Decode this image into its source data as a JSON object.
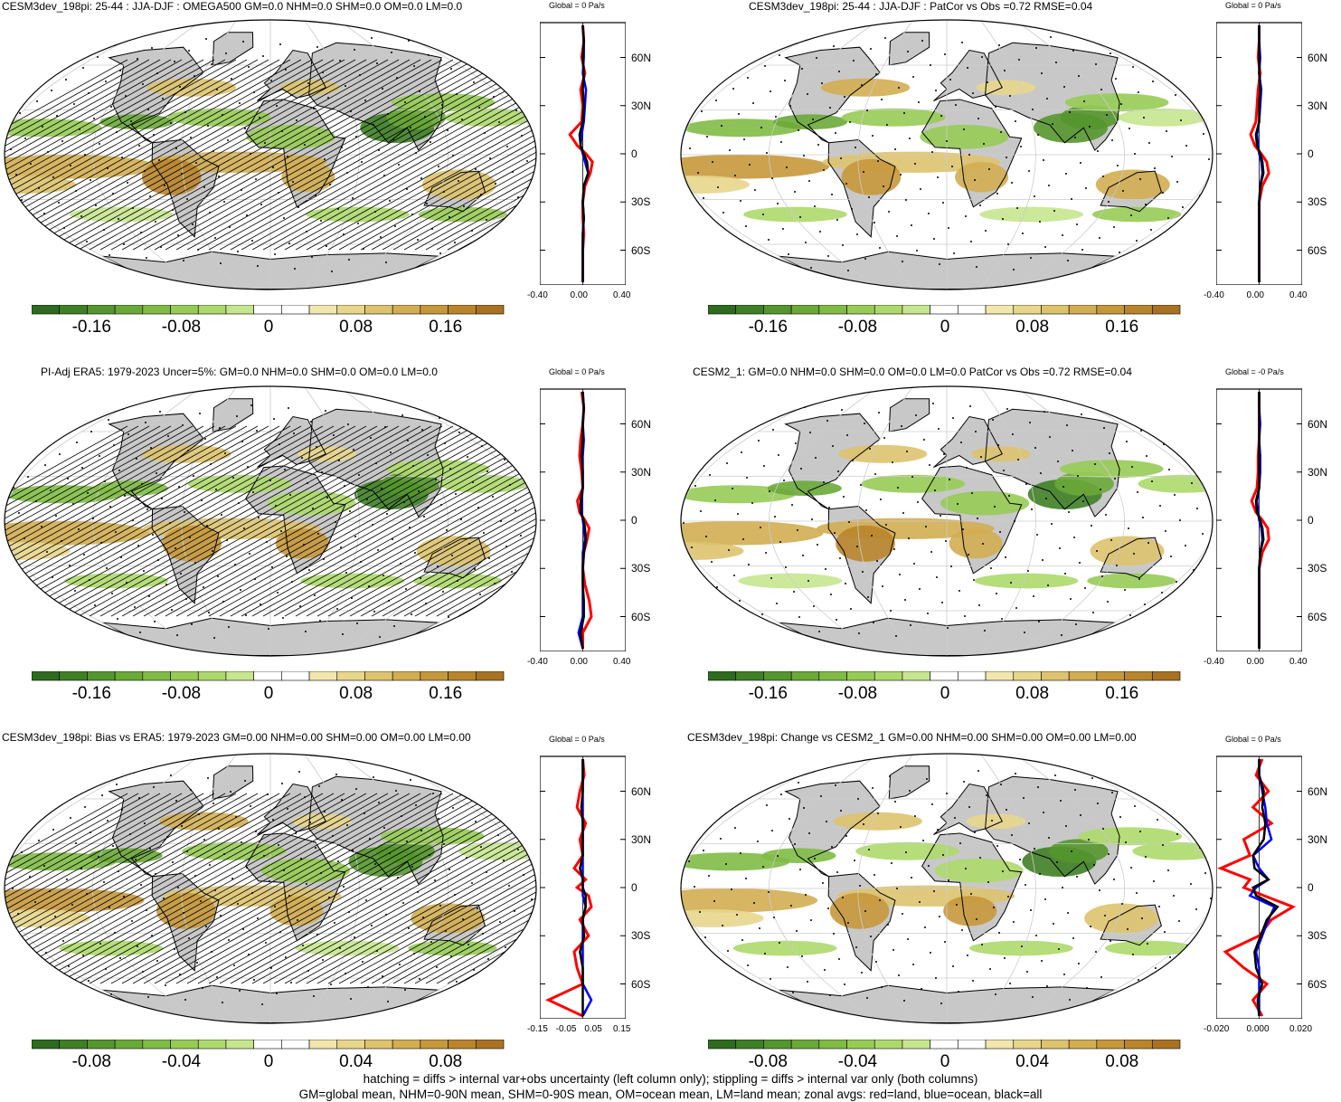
{
  "figure": {
    "footer": [
      "hatching = diffs > internal var+obs uncertainty (left column only); stippling = diffs > internal var only (both columns)",
      "GM=global mean, NHM=0-90N mean, SHM=0-90S mean, OM=ocean mean, LM=land mean; zonal avgs: red=land, blue=ocean, black=all"
    ]
  },
  "panels": [
    {
      "title": "CESM3dev_198pi: 25-44 : JJA-DJF : OMEGA500 GM=0.0 NHM=0.0 SHM=0.0 OM=0.0 LM=0.0",
      "zonal_title": "Global = 0 Pa/s"
    },
    {
      "title": "CESM3dev_198pi: 25-44 : JJA-DJF : PatCor vs Obs =0.72 RMSE=0.04",
      "zonal_title": "Global = 0 Pa/s"
    },
    {
      "title": "PI-Adj ERA5: 1979-2023 Uncer=5%: GM=0.0 NHM=0.0 SHM=0.0 OM=0.0 LM=0.0",
      "zonal_title": "Global = 0 Pa/s"
    },
    {
      "title": "CESM2_1: GM=0.0 NHM=0.0 SHM=0.0 OM=0.0 LM=0.0 PatCor vs Obs =0.72 RMSE=0.04",
      "zonal_title": "Global = -0 Pa/s"
    },
    {
      "title": "CESM3dev_198pi: Bias vs ERA5: 1979-2023 GM=0.00 NHM=0.00 SHM=0.00 OM=0.00 LM=0.00",
      "zonal_title": "Global = 0 Pa/s"
    },
    {
      "title": "CESM3dev_198pi: Change vs CESM2_1 GM=0.00 NHM=0.00 SHM=0.00 OM=0.00 LM=0.00",
      "zonal_title": "Global = 0 Pa/s"
    }
  ],
  "colors": {
    "scale": [
      "#2e6b1e",
      "#3f7f26",
      "#55962e",
      "#6aa938",
      "#80bb45",
      "#97cb55",
      "#add96c",
      "#c6e58f",
      "#ffffff",
      "#ffffff",
      "#f1e7ae",
      "#e8d68c",
      "#ddc36e",
      "#d2ad52",
      "#c6983c",
      "#b9852c",
      "#a97222"
    ],
    "land": "#c8c8c8",
    "land_line": "#e9e9e9",
    "zonal_land": "#ff0000",
    "zonal_ocean": "#0000ff",
    "zonal_all": "#000000"
  },
  "chart_data": [
    {
      "type": "heatmap",
      "colorbar_labels": [
        "-0.16",
        "-0.08",
        "0",
        "0.08",
        "0.16"
      ],
      "lat_labels": [
        "60N",
        "30N",
        "0",
        "30S",
        "60S"
      ],
      "zonal_x_labels": [
        "-0.40",
        "0.00",
        "0.40"
      ],
      "zonal_xlim": [
        -0.4,
        0.4
      ],
      "zonal_profiles": {
        "lat": [
          80,
          70,
          60,
          50,
          40,
          30,
          20,
          12,
          5,
          0,
          -5,
          -12,
          -20,
          -30,
          -40,
          -50,
          -60,
          -70,
          -80
        ],
        "land": [
          0,
          0.01,
          -0.01,
          0.02,
          -0.02,
          0.0,
          -0.01,
          -0.12,
          -0.05,
          0.03,
          0.09,
          0.07,
          0.02,
          0.0,
          0.0,
          0.01,
          0.0,
          0.0,
          0.0
        ],
        "ocean": [
          0,
          0.01,
          0.01,
          0.0,
          0.03,
          0.02,
          0.01,
          -0.01,
          -0.02,
          0.0,
          0.02,
          0.05,
          0.01,
          0.0,
          0.01,
          0.0,
          0.0,
          0.0,
          0.0
        ],
        "all": [
          0,
          0.01,
          0.0,
          0.01,
          0.0,
          0.01,
          0.0,
          -0.03,
          -0.02,
          0.01,
          0.04,
          0.05,
          0.01,
          0.0,
          0.01,
          0.0,
          0.0,
          0.0,
          0.0
        ]
      }
    },
    {
      "type": "heatmap",
      "colorbar_labels": [
        "-0.16",
        "-0.08",
        "0",
        "0.08",
        "0.16"
      ],
      "lat_labels": [
        "60N",
        "30N",
        "0",
        "30S",
        "60S"
      ],
      "zonal_x_labels": [
        "-0.40",
        "0.00",
        "0.40"
      ],
      "zonal_xlim": [
        -0.4,
        0.4
      ],
      "zonal_profiles": {
        "lat": [
          80,
          70,
          60,
          50,
          40,
          30,
          20,
          12,
          5,
          0,
          -5,
          -12,
          -20,
          -30,
          -40,
          -50,
          -60,
          -70,
          -80
        ],
        "land": [
          0,
          0.0,
          -0.01,
          0.01,
          -0.01,
          -0.02,
          -0.03,
          -0.08,
          -0.04,
          0.02,
          0.07,
          0.09,
          0.03,
          0.0,
          0.0,
          0.0,
          0.0,
          0.0,
          0.0
        ],
        "ocean": [
          0,
          0.0,
          0.01,
          0.0,
          0.02,
          0.01,
          0.0,
          -0.02,
          -0.01,
          0.0,
          0.02,
          0.03,
          0.01,
          0.0,
          0.0,
          0.0,
          0.0,
          0.0,
          0.0
        ],
        "all": [
          0,
          0.0,
          0.0,
          0.0,
          0.01,
          0.0,
          0.0,
          -0.03,
          -0.02,
          0.01,
          0.03,
          0.04,
          0.01,
          0.0,
          0.0,
          0.0,
          0.0,
          0.0,
          0.0
        ]
      }
    },
    {
      "type": "heatmap",
      "colorbar_labels": [
        "-0.16",
        "-0.08",
        "0",
        "0.08",
        "0.16"
      ],
      "lat_labels": [
        "60N",
        "30N",
        "0",
        "30S",
        "60S"
      ],
      "zonal_x_labels": [
        "-0.40",
        "0.00",
        "0.40"
      ],
      "zonal_xlim": [
        -0.4,
        0.4
      ],
      "zonal_profiles": {
        "lat": [
          80,
          70,
          60,
          50,
          40,
          30,
          20,
          12,
          5,
          0,
          -5,
          -12,
          -20,
          -30,
          -40,
          -50,
          -60,
          -70,
          -80
        ],
        "land": [
          -0.01,
          0.01,
          0.0,
          -0.02,
          -0.03,
          -0.01,
          0.0,
          -0.05,
          -0.03,
          0.02,
          0.06,
          0.04,
          0.01,
          0.0,
          0.02,
          0.06,
          0.08,
          0.0,
          0.0
        ],
        "ocean": [
          0,
          0.01,
          0.0,
          0.01,
          0.0,
          0.0,
          0.0,
          -0.01,
          -0.01,
          0.0,
          0.01,
          0.02,
          0.0,
          0.0,
          0.0,
          0.0,
          0.0,
          -0.04,
          0.0
        ],
        "all": [
          0,
          0.01,
          0.0,
          0.0,
          -0.01,
          0.0,
          0.0,
          -0.02,
          -0.02,
          0.01,
          0.02,
          0.03,
          0.01,
          0.0,
          0.0,
          0.01,
          0.01,
          -0.02,
          0.0
        ]
      }
    },
    {
      "type": "heatmap",
      "colorbar_labels": [
        "-0.16",
        "-0.08",
        "0",
        "0.08",
        "0.16"
      ],
      "lat_labels": [
        "60N",
        "30N",
        "0",
        "30S",
        "60S"
      ],
      "zonal_x_labels": [
        "-0.40",
        "0.00",
        "0.40"
      ],
      "zonal_xlim": [
        -0.4,
        0.4
      ],
      "zonal_profiles": {
        "lat": [
          80,
          70,
          60,
          50,
          40,
          30,
          20,
          12,
          5,
          0,
          -5,
          -12,
          -20,
          -30,
          -40,
          -50,
          -60,
          -70,
          -80
        ],
        "land": [
          0,
          0.0,
          0.0,
          0.0,
          -0.01,
          -0.01,
          -0.02,
          -0.07,
          -0.03,
          0.03,
          0.08,
          0.09,
          0.03,
          0.0,
          0.0,
          0.0,
          0.0,
          0.0,
          0.0
        ],
        "ocean": [
          0,
          0.0,
          0.01,
          0.0,
          0.01,
          0.01,
          0.0,
          -0.02,
          -0.01,
          0.0,
          0.02,
          0.03,
          0.01,
          0.0,
          0.0,
          0.0,
          0.0,
          0.0,
          0.0
        ],
        "all": [
          0,
          0.0,
          0.0,
          0.0,
          0.0,
          0.0,
          0.0,
          -0.03,
          -0.02,
          0.01,
          0.03,
          0.04,
          0.01,
          0.0,
          0.0,
          0.0,
          0.0,
          0.0,
          0.0
        ]
      }
    },
    {
      "type": "heatmap",
      "colorbar_labels": [
        "-0.08",
        "-0.04",
        "0",
        "0.04",
        "0.08"
      ],
      "lat_labels": [
        "60N",
        "30N",
        "0",
        "30S",
        "60S"
      ],
      "zonal_x_labels": [
        "-0.15",
        "-0.05",
        "0.05",
        "0.15"
      ],
      "zonal_xlim": [
        -0.15,
        0.15
      ],
      "zonal_profiles": {
        "lat": [
          80,
          70,
          60,
          50,
          40,
          30,
          20,
          12,
          5,
          0,
          -5,
          -12,
          -20,
          -30,
          -40,
          -50,
          -60,
          -70,
          -80
        ],
        "land": [
          0,
          0.005,
          -0.01,
          -0.02,
          0.01,
          -0.01,
          0.0,
          -0.03,
          0.01,
          -0.02,
          0.02,
          0.03,
          -0.01,
          0.02,
          -0.03,
          -0.02,
          0.0,
          -0.12,
          0.0
        ],
        "ocean": [
          0,
          0.0,
          0.0,
          0.0,
          0.0,
          0.0,
          0.0,
          0.0,
          0.0,
          0.0,
          0.0,
          0.01,
          0.0,
          0.0,
          0.0,
          0.0,
          0.0,
          0.03,
          0.0
        ],
        "all": [
          0,
          0.0,
          0.0,
          -0.005,
          0.0,
          0.0,
          0.0,
          -0.01,
          0.0,
          0.0,
          0.01,
          0.01,
          0.0,
          0.005,
          -0.01,
          0.0,
          0.0,
          0.0,
          0.0
        ]
      }
    },
    {
      "type": "heatmap",
      "colorbar_labels": [
        "-0.08",
        "-0.04",
        "0",
        "0.04",
        "0.08"
      ],
      "lat_labels": [
        "60N",
        "30N",
        "0",
        "30S",
        "60S"
      ],
      "zonal_x_labels": [
        "-0.020",
        "0.000",
        "0.020"
      ],
      "zonal_xlim": [
        -0.028,
        0.028
      ],
      "zonal_profiles": {
        "lat": [
          80,
          70,
          60,
          50,
          40,
          30,
          20,
          12,
          5,
          0,
          -5,
          -12,
          -20,
          -30,
          -40,
          -50,
          -60,
          -70,
          -80
        ],
        "land": [
          0.002,
          -0.002,
          0.006,
          -0.004,
          0.008,
          -0.01,
          -0.006,
          -0.025,
          -0.006,
          -0.01,
          0.003,
          0.022,
          0.008,
          0.0,
          -0.022,
          -0.01,
          0.005,
          -0.004,
          0.002
        ],
        "ocean": [
          0.0,
          0.0,
          0.002,
          0.004,
          0.005,
          0.008,
          -0.004,
          0.0,
          0.006,
          -0.002,
          -0.006,
          0.01,
          0.006,
          0.002,
          -0.002,
          0.0,
          0.0,
          0.0,
          0.0
        ],
        "all": [
          0.0,
          0.0,
          0.003,
          0.002,
          0.004,
          0.003,
          -0.004,
          -0.003,
          0.006,
          -0.004,
          -0.002,
          0.012,
          0.005,
          0.001,
          -0.003,
          -0.002,
          0.002,
          -0.001,
          0.0
        ]
      }
    }
  ]
}
